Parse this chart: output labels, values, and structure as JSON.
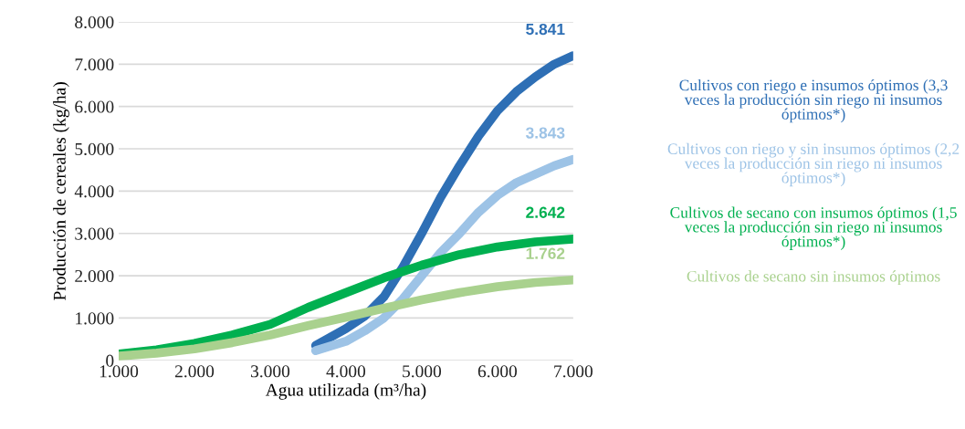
{
  "chart_data": {
    "type": "line",
    "xlabel": "Agua utilizada (m³/ha)",
    "ylabel": "Producción de cereales (kg/ha)",
    "xlim": [
      1000,
      7000
    ],
    "xticks": [
      {
        "value": 1000,
        "label": "1.000"
      },
      {
        "value": 2000,
        "label": "2.000"
      },
      {
        "value": 3000,
        "label": "3.000"
      },
      {
        "value": 4000,
        "label": "4.000"
      },
      {
        "value": 5000,
        "label": "5.000"
      },
      {
        "value": 6000,
        "label": "6.000"
      },
      {
        "value": 7000,
        "label": "7.000"
      }
    ],
    "ylim": [
      0,
      8000
    ],
    "yticks": [
      0,
      {
        "value": 1000,
        "label": "1.000"
      },
      {
        "value": 2000,
        "label": "2.000"
      },
      {
        "value": 3000,
        "label": "3.000"
      },
      {
        "value": 4000,
        "label": "4.000"
      },
      {
        "value": 5000,
        "label": "5.000"
      },
      {
        "value": 6000,
        "label": "6.000"
      },
      {
        "value": 7000,
        "label": "7.000"
      },
      {
        "value": 8000,
        "label": "8.000"
      }
    ],
    "grid": "y",
    "legend": "right",
    "marker": "none",
    "line_style": "solid",
    "series": [
      {
        "name": "Cultivos con riego e insumos óptimos (3,3 veces la producción sin riego ni insumos óptimos*)",
        "color": "#2e6fb5",
        "x": [
          3600,
          4000,
          4250,
          4500,
          4750,
          5000,
          5250,
          5500,
          5750,
          6000,
          6250,
          6500,
          6750,
          7000
        ],
        "values": [
          350,
          750,
          1050,
          1500,
          2200,
          3000,
          3850,
          4600,
          5300,
          5900,
          6350,
          6700,
          7000,
          7200
        ]
      },
      {
        "name": "Cultivos con riego y sin insumos óptimos (2,2 veces la producción sin riego ni insumos óptimos*)",
        "color": "#9dc3e6",
        "x": [
          3600,
          4000,
          4250,
          4500,
          4750,
          5000,
          5250,
          5500,
          5750,
          6000,
          6250,
          6500,
          6750,
          7000
        ],
        "values": [
          230,
          450,
          700,
          1000,
          1450,
          2000,
          2550,
          3000,
          3500,
          3900,
          4200,
          4400,
          4600,
          4750
        ]
      },
      {
        "name": "Cultivos de secano con insumos óptimos (1,5 veces la producción sin riego ni insumos óptimos*)",
        "color": "#00b050",
        "x": [
          1000,
          1500,
          2000,
          2500,
          3000,
          3500,
          4000,
          4500,
          5000,
          5500,
          6000,
          6500,
          7000
        ],
        "values": [
          150,
          250,
          400,
          600,
          850,
          1250,
          1600,
          1950,
          2250,
          2500,
          2680,
          2800,
          2870
        ]
      },
      {
        "name": "Cultivos de secano sin insumos óptimos",
        "color": "#a9d18e",
        "x": [
          1000,
          1500,
          2000,
          2500,
          3000,
          3500,
          4000,
          4500,
          5000,
          5500,
          6000,
          6500,
          7000
        ],
        "values": [
          100,
          170,
          270,
          420,
          600,
          820,
          1020,
          1230,
          1430,
          1600,
          1740,
          1840,
          1900
        ]
      }
    ],
    "annotations": [
      "5.841",
      "3.843",
      "2.642",
      "1.762"
    ]
  }
}
